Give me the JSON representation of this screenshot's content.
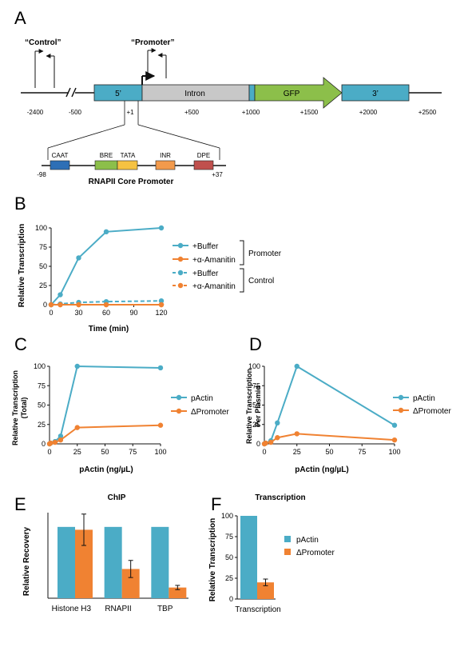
{
  "colors": {
    "blue": "#4bacc6",
    "orange": "#f08232",
    "grey": "#c8c8c8",
    "green": "#8cbf4a",
    "caat": "#2e6fb6",
    "bre": "#8cbf4a",
    "tata": "#f5c242",
    "inr": "#f29a4c",
    "dpe": "#c0504d",
    "gene_blue": "#4bacc6"
  },
  "panelA": {
    "label": "A",
    "primer_control": "“Control”",
    "primer_promoter": "“Promoter”",
    "regions": {
      "five": "5’",
      "intron": "Intron",
      "gfp": "GFP",
      "three": "3’"
    },
    "coords": [
      "-2400",
      "-500",
      "+1",
      "+500",
      "+1000",
      "+1500",
      "+2000",
      "+2500"
    ],
    "core": {
      "left": "-98",
      "right": "+37",
      "elements": [
        "CAAT",
        "BRE",
        "TATA",
        "INR",
        "DPE"
      ],
      "title": "RNAPII Core Promoter"
    }
  },
  "chart_data": [
    {
      "id": "B",
      "type": "line",
      "panel_label": "B",
      "xlabel": "Time (min)",
      "ylabel": "Relative Transcription",
      "xlim": [
        0,
        120
      ],
      "ylim": [
        0,
        100
      ],
      "xticks": [
        0,
        30,
        60,
        90,
        120
      ],
      "yticks": [
        0,
        25,
        50,
        75,
        100
      ],
      "series": [
        {
          "name": "+Buffer",
          "group": "Promoter",
          "color": "#4bacc6",
          "dashed": false,
          "x": [
            0,
            10,
            30,
            60,
            120
          ],
          "y": [
            0,
            13,
            61,
            95,
            100
          ]
        },
        {
          "name": "+α-Amanitin",
          "group": "Promoter",
          "color": "#f08232",
          "dashed": false,
          "x": [
            0,
            10,
            30,
            60,
            120
          ],
          "y": [
            0,
            0,
            0,
            0,
            0
          ]
        },
        {
          "name": "+Buffer",
          "group": "Control",
          "color": "#4bacc6",
          "dashed": true,
          "x": [
            0,
            10,
            30,
            60,
            120
          ],
          "y": [
            0,
            1,
            3,
            4,
            5
          ]
        },
        {
          "name": "+α-Amanitin",
          "group": "Control",
          "color": "#f08232",
          "dashed": true,
          "x": [
            0,
            10,
            30,
            60,
            120
          ],
          "y": [
            0,
            0,
            0,
            0,
            0
          ]
        }
      ],
      "legend_groups": [
        "Promoter",
        "Control"
      ]
    },
    {
      "id": "C",
      "type": "line",
      "panel_label": "C",
      "xlabel": "pActin (ng/µL)",
      "ylabel": "Relative Transcription",
      "ylabel2": "(Total)",
      "xlim": [
        0,
        100
      ],
      "ylim": [
        0,
        100
      ],
      "xticks": [
        0,
        25,
        50,
        75,
        100
      ],
      "yticks": [
        0,
        25,
        50,
        75,
        100
      ],
      "series": [
        {
          "name": "pActin",
          "color": "#4bacc6",
          "dashed": false,
          "x": [
            0,
            1,
            5,
            10,
            25,
            100
          ],
          "y": [
            0,
            1,
            3,
            10,
            100,
            98
          ]
        },
        {
          "name": "ΔPromoter",
          "color": "#f08232",
          "dashed": false,
          "x": [
            0,
            1,
            5,
            10,
            25,
            100
          ],
          "y": [
            0,
            1,
            2,
            5,
            21,
            24
          ]
        }
      ]
    },
    {
      "id": "D",
      "type": "line",
      "panel_label": "D",
      "xlabel": "pActin (ng/µL)",
      "ylabel": "Relative Transcription",
      "ylabel2": "Per Plasmid",
      "xlim": [
        0,
        100
      ],
      "ylim": [
        0,
        100
      ],
      "xticks": [
        0,
        25,
        50,
        75,
        100
      ],
      "yticks": [
        0,
        25,
        50,
        75,
        100
      ],
      "series": [
        {
          "name": "pActin",
          "color": "#4bacc6",
          "dashed": false,
          "x": [
            0,
            1,
            5,
            10,
            25,
            100
          ],
          "y": [
            0,
            1,
            4,
            27,
            100,
            24
          ]
        },
        {
          "name": "ΔPromoter",
          "color": "#f08232",
          "dashed": false,
          "x": [
            0,
            1,
            5,
            10,
            25,
            100
          ],
          "y": [
            0,
            1,
            2,
            8,
            13,
            5
          ]
        }
      ]
    },
    {
      "id": "E",
      "type": "bar",
      "panel_label": "E",
      "title": "ChIP",
      "ylabel": "Relative Recovery",
      "categories": [
        "Histone H3",
        "RNAPII",
        "TBP"
      ],
      "ylim": [
        0,
        120
      ],
      "series": [
        {
          "name": "pActin",
          "color": "#4bacc6",
          "values": [
            100,
            100,
            100
          ],
          "errors": [
            0,
            0,
            0
          ]
        },
        {
          "name": "ΔPromoter",
          "color": "#f08232",
          "values": [
            96,
            41,
            15
          ],
          "errors": [
            22,
            12,
            3
          ]
        }
      ]
    },
    {
      "id": "F",
      "type": "bar",
      "panel_label": "F",
      "title": "Transcription",
      "ylabel": "Relative Transcription",
      "categories": [
        "Transcription"
      ],
      "ylim": [
        0,
        100
      ],
      "yticks": [
        0,
        25,
        50,
        75,
        100
      ],
      "series": [
        {
          "name": "pActin",
          "color": "#4bacc6",
          "values": [
            100
          ],
          "errors": [
            0
          ]
        },
        {
          "name": "ΔPromoter",
          "color": "#f08232",
          "values": [
            20
          ],
          "errors": [
            4
          ]
        }
      ]
    }
  ]
}
